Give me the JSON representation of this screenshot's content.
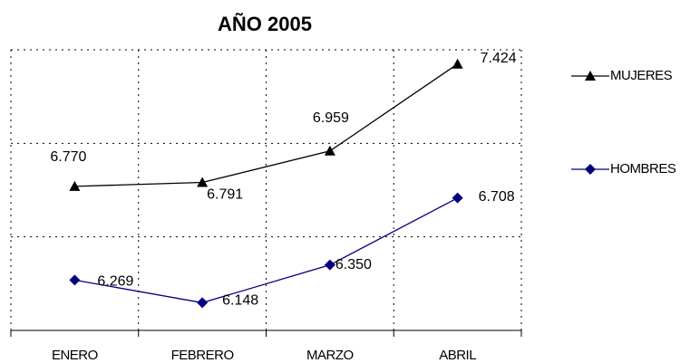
{
  "chart_data": {
    "type": "line",
    "title": "AÑO 2005",
    "categories": [
      "ENERO",
      "FEBRERO",
      "MARZO",
      "ABRIL"
    ],
    "series": [
      {
        "name": "MUJERES",
        "color": "#000000",
        "values": [
          6770,
          6791,
          6959,
          7424
        ],
        "value_labels": [
          "6.770",
          "6.791",
          "6.959",
          "7.424"
        ]
      },
      {
        "name": "HOMBRES",
        "color": "#000080",
        "values": [
          6269,
          6148,
          6350,
          6708
        ],
        "value_labels": [
          "6.269",
          "6.148",
          "6.350",
          "6.708"
        ]
      }
    ],
    "ylim": [
      6000,
      7500
    ],
    "yticks": [
      6000,
      6500,
      7000,
      7500
    ],
    "grid": true,
    "legend": "right"
  }
}
